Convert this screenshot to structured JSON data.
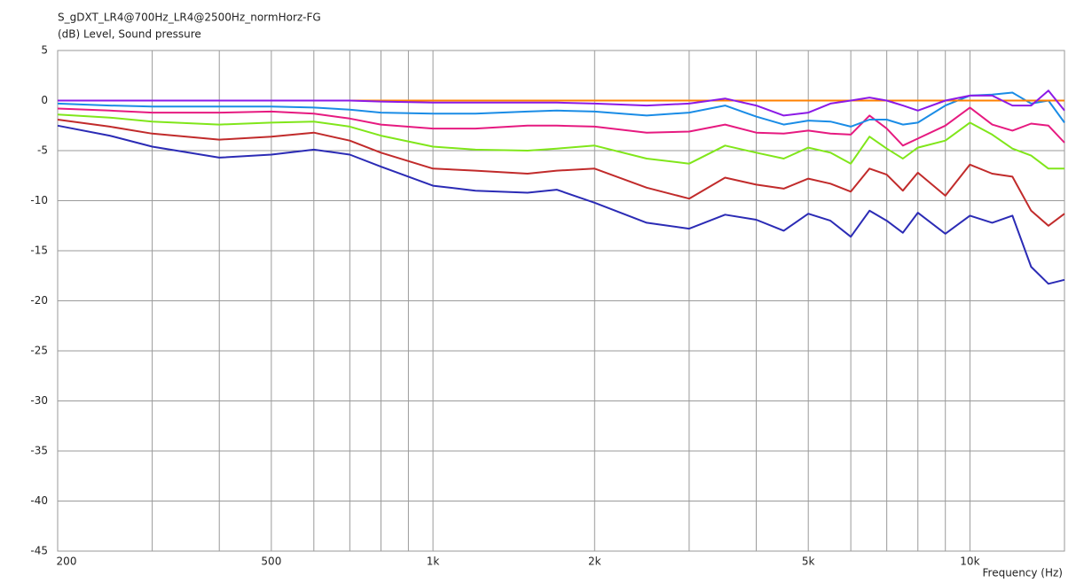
{
  "chart_data": {
    "type": "line",
    "title": "S_gDXT_LR4@700Hz_LR4@2500Hz_normHorz-FG",
    "y_label": "(dB)  Level, Sound pressure",
    "x_label": "Frequency  (Hz)",
    "x_scale": "log",
    "grid": true,
    "x": [
      200,
      250,
      300,
      400,
      500,
      600,
      700,
      800,
      1000,
      1200,
      1500,
      1700,
      2000,
      2500,
      3000,
      3500,
      4000,
      4500,
      5000,
      5500,
      6000,
      6500,
      7000,
      7500,
      8000,
      9000,
      10000,
      11000,
      12000,
      13000,
      14000,
      15000
    ],
    "xlim": [
      200,
      15000
    ],
    "xticks": [
      200,
      500,
      {
        "value": 1000,
        "label": "1k"
      },
      {
        "value": 2000,
        "label": "2k"
      },
      {
        "value": 5000,
        "label": "5k"
      },
      {
        "value": 10000,
        "label": "10k"
      }
    ],
    "x_minor_grid": [
      300,
      400,
      600,
      700,
      800,
      900,
      3000,
      4000,
      6000,
      7000,
      8000,
      9000
    ],
    "ylim": [
      -45,
      5
    ],
    "yticks": [
      5,
      0,
      -5,
      -10,
      -15,
      -20,
      -25,
      -30,
      -35,
      -40,
      -45
    ],
    "series": [
      {
        "color": "#2b2bb5",
        "values": [
          -2.5,
          -3.5,
          -4.6,
          -5.7,
          -5.4,
          -4.9,
          -5.4,
          -6.6,
          -8.5,
          -9.0,
          -9.2,
          -8.9,
          -10.2,
          -12.2,
          -12.8,
          -11.4,
          -11.9,
          -13.0,
          -11.3,
          -12.0,
          -13.6,
          -11.0,
          -12.0,
          -13.2,
          -11.2,
          -13.3,
          -11.5,
          -12.2,
          -11.5,
          -16.6,
          -18.3,
          -17.9
        ]
      },
      {
        "color": "#c12b2b",
        "values": [
          -1.9,
          -2.6,
          -3.3,
          -3.9,
          -3.6,
          -3.2,
          -4.0,
          -5.2,
          -6.8,
          -7.0,
          -7.3,
          -7.0,
          -6.8,
          -8.7,
          -9.8,
          -7.7,
          -8.4,
          -8.8,
          -7.8,
          -8.3,
          -9.1,
          -6.8,
          -7.4,
          -9.0,
          -7.2,
          -9.5,
          -6.4,
          -7.3,
          -7.6,
          -11.0,
          -12.5,
          -11.3
        ]
      },
      {
        "color": "#80e61a",
        "values": [
          -1.4,
          -1.7,
          -2.1,
          -2.4,
          -2.2,
          -2.1,
          -2.6,
          -3.5,
          -4.6,
          -4.9,
          -5.0,
          -4.8,
          -4.5,
          -5.8,
          -6.3,
          -4.5,
          -5.2,
          -5.8,
          -4.7,
          -5.2,
          -6.3,
          -3.6,
          -4.8,
          -5.8,
          -4.7,
          -4.0,
          -2.2,
          -3.4,
          -4.8,
          -5.5,
          -6.8,
          -6.8
        ]
      },
      {
        "color": "#e61a80",
        "values": [
          -0.8,
          -1.0,
          -1.2,
          -1.2,
          -1.1,
          -1.3,
          -1.8,
          -2.4,
          -2.8,
          -2.8,
          -2.5,
          -2.5,
          -2.6,
          -3.2,
          -3.1,
          -2.4,
          -3.2,
          -3.3,
          -3.0,
          -3.3,
          -3.4,
          -1.5,
          -2.8,
          -4.5,
          -3.8,
          -2.5,
          -0.7,
          -2.4,
          -3.0,
          -2.3,
          -2.5,
          -4.2
        ]
      },
      {
        "color": "#1a8ce6",
        "values": [
          -0.3,
          -0.5,
          -0.6,
          -0.6,
          -0.6,
          -0.7,
          -0.9,
          -1.2,
          -1.3,
          -1.3,
          -1.1,
          -1.0,
          -1.1,
          -1.5,
          -1.2,
          -0.5,
          -1.6,
          -2.4,
          -2.0,
          -2.1,
          -2.6,
          -1.9,
          -1.9,
          -2.4,
          -2.2,
          -0.5,
          0.5,
          0.6,
          0.8,
          -0.3,
          0.0,
          -2.2
        ]
      },
      {
        "color": "#ff8000",
        "values": [
          0,
          0,
          0,
          0,
          0,
          0,
          0,
          0,
          0,
          0,
          0,
          0,
          0,
          0,
          0,
          0,
          0,
          0,
          0,
          0,
          0,
          0,
          0,
          0,
          0,
          0,
          0,
          0,
          0,
          0,
          0,
          0
        ]
      },
      {
        "color": "#8c1ae6",
        "values": [
          0,
          0,
          0,
          0,
          0,
          0,
          0,
          -0.1,
          -0.2,
          -0.2,
          -0.2,
          -0.2,
          -0.3,
          -0.5,
          -0.3,
          0.2,
          -0.5,
          -1.5,
          -1.2,
          -0.3,
          0,
          0.3,
          0,
          -0.5,
          -1.0,
          0,
          0.5,
          0.5,
          -0.5,
          -0.5,
          1.0,
          -1.0
        ]
      }
    ]
  }
}
